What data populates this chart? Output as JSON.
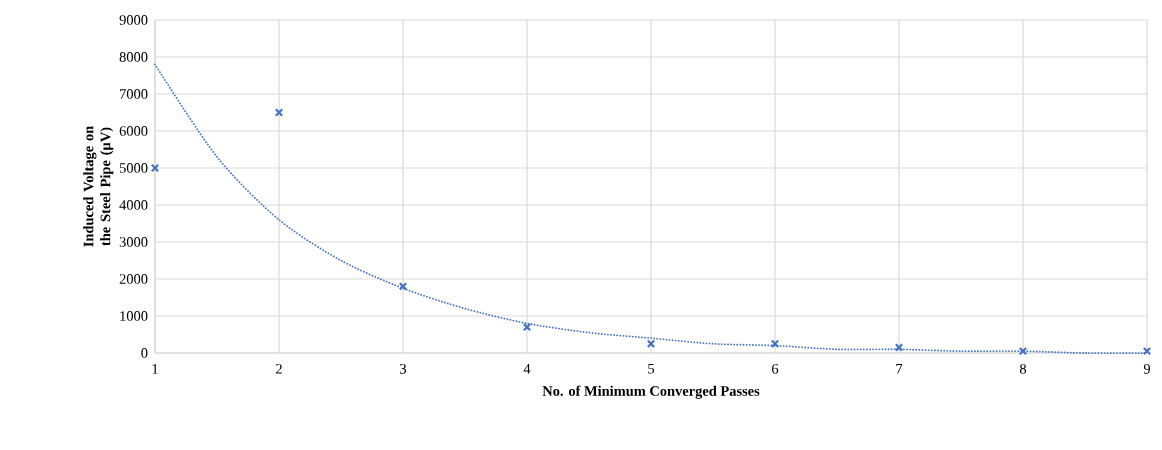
{
  "chart_data": {
    "type": "scatter",
    "xlabel": "No. of Minimum Converged Passes",
    "ylabel": "Induced Voltage on the Steel Pipe (µV)",
    "xlim": [
      1,
      9
    ],
    "xticks": [
      1,
      2,
      3,
      4,
      5,
      6,
      7,
      8,
      9
    ],
    "ylim": [
      0,
      9000
    ],
    "yticks": [
      0,
      1000,
      2000,
      3000,
      4000,
      5000,
      6000,
      7000,
      8000,
      9000
    ],
    "grid": true,
    "legend": false,
    "series": [
      {
        "color": "#4472c4",
        "marker": "cross",
        "x": [
          1,
          2,
          3,
          4,
          5,
          6,
          7,
          8,
          9
        ],
        "values": [
          5000,
          6500,
          1800,
          700,
          250,
          250,
          150,
          50,
          50
        ]
      },
      {
        "type": "line",
        "color": "#4472c4",
        "line_style": "dotted",
        "marker": "none",
        "x": [
          1,
          1.5,
          2,
          2.5,
          3,
          3.5,
          4,
          4.5,
          5,
          5.5,
          6,
          6.5,
          7,
          7.5,
          8,
          8.5,
          9
        ],
        "values": [
          7800,
          5300,
          3600,
          2500,
          1750,
          1200,
          800,
          550,
          400,
          250,
          200,
          100,
          100,
          50,
          50,
          0,
          0
        ]
      }
    ]
  }
}
